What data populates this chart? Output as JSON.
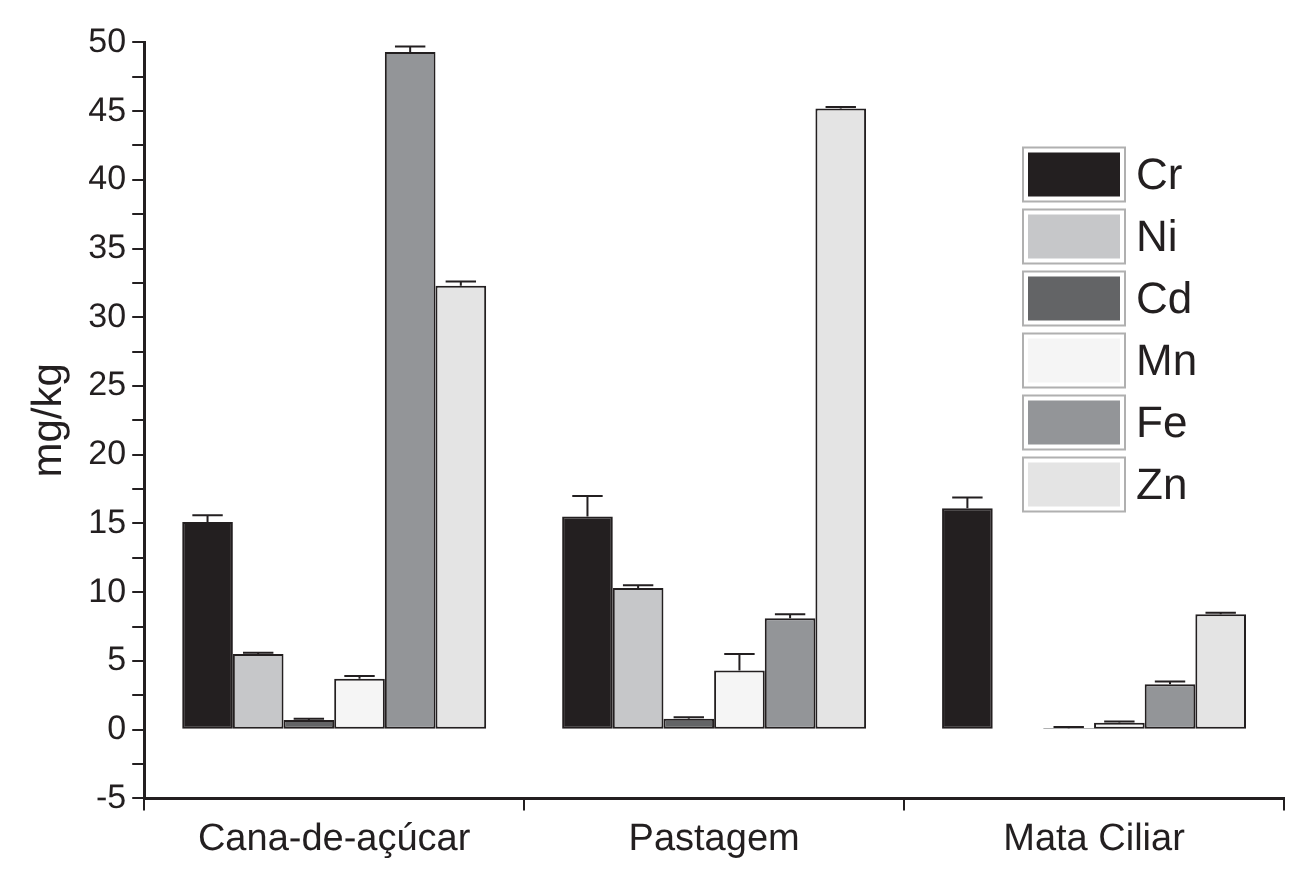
{
  "chart_data": {
    "type": "bar",
    "ylabel": "mg/kg",
    "categories": [
      "Cana-de-açúcar",
      "Pastagem",
      "Mata Ciliar"
    ],
    "series": [
      {
        "name": "Cr",
        "color": "#231f20",
        "values": [
          15.1,
          15.5,
          16.1
        ],
        "errors": [
          [
            15.1,
            15.6
          ],
          [
            15.5,
            17.0
          ],
          [
            16.1,
            16.9
          ]
        ]
      },
      {
        "name": "Ni",
        "color": "#c6c7c9",
        "values": [
          5.5,
          10.3,
          0
        ],
        "errors": [
          [
            5.5,
            5.6
          ],
          [
            10.3,
            10.5
          ],
          null
        ]
      },
      {
        "name": "Cd",
        "color": "#636466",
        "values": [
          0.7,
          0.8,
          0.1
        ],
        "errors": [
          [
            0.7,
            0.8
          ],
          [
            0.8,
            0.9
          ],
          [
            0.1,
            0.2
          ]
        ]
      },
      {
        "name": "Mn",
        "color": "#f5f5f5",
        "values": [
          3.7,
          4.3,
          0.5
        ],
        "errors": [
          [
            3.7,
            3.9
          ],
          [
            4.3,
            5.5
          ],
          [
            0.5,
            0.6
          ]
        ]
      },
      {
        "name": "Fe",
        "color": "#939598",
        "values": [
          49.3,
          8.1,
          3.3
        ],
        "errors": [
          [
            49.3,
            49.7
          ],
          [
            8.1,
            8.4
          ],
          [
            3.3,
            3.5
          ]
        ]
      },
      {
        "name": "Zn",
        "color": "#e4e4e4",
        "values": [
          32.3,
          45.2,
          8.4
        ],
        "errors": [
          [
            32.3,
            32.6
          ],
          [
            45.2,
            45.3
          ],
          [
            8.4,
            8.5
          ]
        ]
      }
    ],
    "ylim": [
      -5,
      50
    ],
    "yticks": [
      -5,
      {
        "value": -2.5,
        "label": null
      },
      0,
      {
        "value": 2.5,
        "label": null
      },
      5,
      {
        "value": 7.5,
        "label": null
      },
      10,
      {
        "value": 12.5,
        "label": null
      },
      15,
      {
        "value": 17.5,
        "label": null
      },
      20,
      {
        "value": 22.5,
        "label": null
      },
      25,
      {
        "value": 27.5,
        "label": null
      },
      30,
      {
        "value": 32.5,
        "label": null
      },
      35,
      {
        "value": 37.5,
        "label": null
      },
      40,
      {
        "value": 42.5,
        "label": null
      },
      45,
      {
        "value": 47.5,
        "label": null
      },
      50
    ],
    "grid": false,
    "legend": "top right"
  }
}
